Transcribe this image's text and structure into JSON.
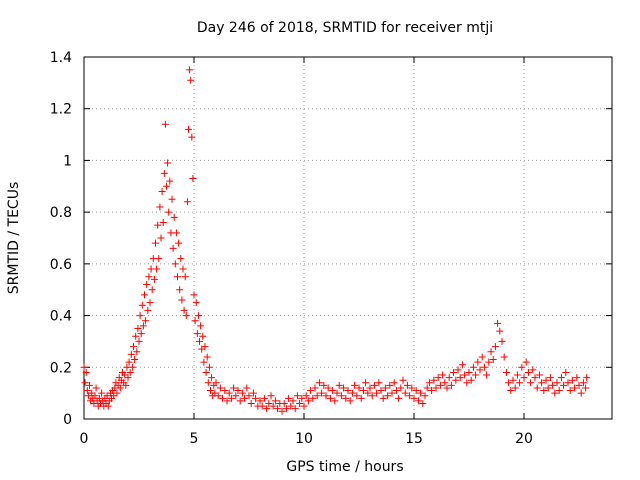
{
  "chart_data": {
    "type": "scatter",
    "title": "Day 246 of 2018, SRMTID for receiver mtji",
    "xlabel": "GPS time / hours",
    "ylabel": "SRMTID / TECUs",
    "xlim": [
      0,
      24
    ],
    "ylim": [
      0,
      1.4
    ],
    "x_ticks": [
      {
        "value": 0,
        "label": "0"
      },
      {
        "value": 5,
        "label": "5"
      },
      {
        "value": 10,
        "label": "10"
      },
      {
        "value": 15,
        "label": "15"
      },
      {
        "value": 20,
        "label": "20"
      }
    ],
    "y_ticks": [
      {
        "value": 0,
        "label": "0"
      },
      {
        "value": 0.2,
        "label": "0.2"
      },
      {
        "value": 0.4,
        "label": "0.4"
      },
      {
        "value": 0.6,
        "label": "0.6"
      },
      {
        "value": 0.8,
        "label": "0.8"
      },
      {
        "value": 1.0,
        "label": "1"
      },
      {
        "value": 1.2,
        "label": "1.2"
      },
      {
        "value": 1.4,
        "label": "1.4"
      }
    ],
    "grid": true,
    "marker": "plus",
    "series": [
      {
        "name": "SRMTID",
        "color": "#ff0000",
        "points": [
          [
            0.0,
            0.2
          ],
          [
            0.05,
            0.14
          ],
          [
            0.1,
            0.18
          ],
          [
            0.15,
            0.11
          ],
          [
            0.2,
            0.09
          ],
          [
            0.25,
            0.13
          ],
          [
            0.3,
            0.07
          ],
          [
            0.35,
            0.1
          ],
          [
            0.4,
            0.08
          ],
          [
            0.45,
            0.06
          ],
          [
            0.5,
            0.09
          ],
          [
            0.55,
            0.12
          ],
          [
            0.6,
            0.07
          ],
          [
            0.65,
            0.05
          ],
          [
            0.7,
            0.08
          ],
          [
            0.75,
            0.06
          ],
          [
            0.8,
            0.1
          ],
          [
            0.85,
            0.07
          ],
          [
            0.9,
            0.05
          ],
          [
            0.95,
            0.08
          ],
          [
            1.0,
            0.06
          ],
          [
            1.05,
            0.09
          ],
          [
            1.1,
            0.05
          ],
          [
            1.15,
            0.07
          ],
          [
            1.2,
            0.1
          ],
          [
            1.25,
            0.08
          ],
          [
            1.3,
            0.11
          ],
          [
            1.35,
            0.09
          ],
          [
            1.4,
            0.12
          ],
          [
            1.45,
            0.14
          ],
          [
            1.5,
            0.1
          ],
          [
            1.55,
            0.13
          ],
          [
            1.6,
            0.16
          ],
          [
            1.65,
            0.12
          ],
          [
            1.7,
            0.15
          ],
          [
            1.75,
            0.18
          ],
          [
            1.8,
            0.14
          ],
          [
            1.85,
            0.17
          ],
          [
            1.9,
            0.13
          ],
          [
            1.95,
            0.2
          ],
          [
            2.0,
            0.16
          ],
          [
            2.05,
            0.22
          ],
          [
            2.1,
            0.18
          ],
          [
            2.15,
            0.25
          ],
          [
            2.2,
            0.2
          ],
          [
            2.25,
            0.28
          ],
          [
            2.3,
            0.23
          ],
          [
            2.35,
            0.32
          ],
          [
            2.4,
            0.26
          ],
          [
            2.45,
            0.35
          ],
          [
            2.5,
            0.3
          ],
          [
            2.55,
            0.4
          ],
          [
            2.6,
            0.33
          ],
          [
            2.65,
            0.44
          ],
          [
            2.7,
            0.36
          ],
          [
            2.75,
            0.48
          ],
          [
            2.8,
            0.38
          ],
          [
            2.85,
            0.52
          ],
          [
            2.9,
            0.42
          ],
          [
            2.95,
            0.55
          ],
          [
            3.0,
            0.45
          ],
          [
            3.05,
            0.58
          ],
          [
            3.1,
            0.5
          ],
          [
            3.15,
            0.62
          ],
          [
            3.2,
            0.54
          ],
          [
            3.25,
            0.68
          ],
          [
            3.3,
            0.58
          ],
          [
            3.35,
            0.75
          ],
          [
            3.4,
            0.62
          ],
          [
            3.45,
            0.82
          ],
          [
            3.5,
            0.7
          ],
          [
            3.55,
            0.88
          ],
          [
            3.6,
            0.76
          ],
          [
            3.65,
            0.95
          ],
          [
            3.7,
            1.14
          ],
          [
            3.75,
            0.9
          ],
          [
            3.8,
            0.99
          ],
          [
            3.85,
            0.8
          ],
          [
            3.9,
            0.92
          ],
          [
            3.95,
            0.72
          ],
          [
            4.0,
            0.85
          ],
          [
            4.05,
            0.66
          ],
          [
            4.1,
            0.78
          ],
          [
            4.15,
            0.6
          ],
          [
            4.2,
            0.72
          ],
          [
            4.25,
            0.55
          ],
          [
            4.3,
            0.68
          ],
          [
            4.35,
            0.5
          ],
          [
            4.4,
            0.62
          ],
          [
            4.45,
            0.46
          ],
          [
            4.5,
            0.58
          ],
          [
            4.55,
            0.42
          ],
          [
            4.6,
            0.55
          ],
          [
            4.65,
            0.4
          ],
          [
            4.7,
            0.84
          ],
          [
            4.75,
            1.12
          ],
          [
            4.8,
            1.35
          ],
          [
            4.85,
            1.31
          ],
          [
            4.9,
            1.09
          ],
          [
            4.95,
            0.93
          ],
          [
            5.0,
            0.48
          ],
          [
            5.05,
            0.38
          ],
          [
            5.1,
            0.45
          ],
          [
            5.15,
            0.33
          ],
          [
            5.2,
            0.4
          ],
          [
            5.25,
            0.3
          ],
          [
            5.3,
            0.36
          ],
          [
            5.35,
            0.27
          ],
          [
            5.4,
            0.32
          ],
          [
            5.45,
            0.22
          ],
          [
            5.5,
            0.28
          ],
          [
            5.55,
            0.18
          ],
          [
            5.6,
            0.24
          ],
          [
            5.65,
            0.14
          ],
          [
            5.7,
            0.2
          ],
          [
            5.75,
            0.11
          ],
          [
            5.8,
            0.16
          ],
          [
            5.85,
            0.09
          ],
          [
            5.9,
            0.13
          ],
          [
            5.95,
            0.1
          ],
          [
            6.0,
            0.14
          ],
          [
            6.1,
            0.09
          ],
          [
            6.2,
            0.12
          ],
          [
            6.3,
            0.08
          ],
          [
            6.4,
            0.11
          ],
          [
            6.5,
            0.07
          ],
          [
            6.6,
            0.1
          ],
          [
            6.7,
            0.08
          ],
          [
            6.8,
            0.12
          ],
          [
            6.9,
            0.09
          ],
          [
            7.0,
            0.11
          ],
          [
            7.1,
            0.07
          ],
          [
            7.2,
            0.1
          ],
          [
            7.3,
            0.08
          ],
          [
            7.4,
            0.12
          ],
          [
            7.5,
            0.09
          ],
          [
            7.6,
            0.06
          ],
          [
            7.7,
            0.1
          ],
          [
            7.8,
            0.08
          ],
          [
            7.9,
            0.05
          ],
          [
            8.0,
            0.07
          ],
          [
            8.1,
            0.05
          ],
          [
            8.2,
            0.08
          ],
          [
            8.3,
            0.04
          ],
          [
            8.4,
            0.06
          ],
          [
            8.5,
            0.09
          ],
          [
            8.6,
            0.05
          ],
          [
            8.7,
            0.07
          ],
          [
            8.8,
            0.04
          ],
          [
            8.9,
            0.06
          ],
          [
            9.0,
            0.03
          ],
          [
            9.1,
            0.06
          ],
          [
            9.2,
            0.04
          ],
          [
            9.3,
            0.08
          ],
          [
            9.4,
            0.05
          ],
          [
            9.5,
            0.07
          ],
          [
            9.6,
            0.04
          ],
          [
            9.7,
            0.09
          ],
          [
            9.8,
            0.06
          ],
          [
            9.9,
            0.08
          ],
          [
            10.0,
            0.05
          ],
          [
            10.1,
            0.09
          ],
          [
            10.2,
            0.07
          ],
          [
            10.3,
            0.11
          ],
          [
            10.4,
            0.08
          ],
          [
            10.5,
            0.12
          ],
          [
            10.6,
            0.09
          ],
          [
            10.7,
            0.14
          ],
          [
            10.8,
            0.1
          ],
          [
            10.9,
            0.13
          ],
          [
            11.0,
            0.09
          ],
          [
            11.1,
            0.12
          ],
          [
            11.2,
            0.08
          ],
          [
            11.3,
            0.11
          ],
          [
            11.4,
            0.07
          ],
          [
            11.5,
            0.1
          ],
          [
            11.6,
            0.13
          ],
          [
            11.7,
            0.09
          ],
          [
            11.8,
            0.12
          ],
          [
            11.9,
            0.08
          ],
          [
            12.0,
            0.11
          ],
          [
            12.1,
            0.07
          ],
          [
            12.2,
            0.1
          ],
          [
            12.3,
            0.13
          ],
          [
            12.4,
            0.09
          ],
          [
            12.5,
            0.12
          ],
          [
            12.6,
            0.08
          ],
          [
            12.7,
            0.11
          ],
          [
            12.8,
            0.14
          ],
          [
            12.9,
            0.1
          ],
          [
            13.0,
            0.12
          ],
          [
            13.1,
            0.09
          ],
          [
            13.2,
            0.13
          ],
          [
            13.3,
            0.1
          ],
          [
            13.4,
            0.14
          ],
          [
            13.5,
            0.11
          ],
          [
            13.6,
            0.08
          ],
          [
            13.7,
            0.12
          ],
          [
            13.8,
            0.09
          ],
          [
            13.9,
            0.13
          ],
          [
            14.0,
            0.1
          ],
          [
            14.1,
            0.14
          ],
          [
            14.2,
            0.11
          ],
          [
            14.3,
            0.08
          ],
          [
            14.4,
            0.12
          ],
          [
            14.5,
            0.15
          ],
          [
            14.6,
            0.1
          ],
          [
            14.7,
            0.13
          ],
          [
            14.8,
            0.09
          ],
          [
            14.9,
            0.12
          ],
          [
            15.0,
            0.08
          ],
          [
            15.1,
            0.11
          ],
          [
            15.2,
            0.07
          ],
          [
            15.3,
            0.1
          ],
          [
            15.4,
            0.06
          ],
          [
            15.5,
            0.09
          ],
          [
            15.6,
            0.12
          ],
          [
            15.7,
            0.14
          ],
          [
            15.8,
            0.11
          ],
          [
            15.9,
            0.15
          ],
          [
            16.0,
            0.12
          ],
          [
            16.1,
            0.16
          ],
          [
            16.2,
            0.13
          ],
          [
            16.3,
            0.17
          ],
          [
            16.4,
            0.14
          ],
          [
            16.5,
            0.12
          ],
          [
            16.6,
            0.16
          ],
          [
            16.7,
            0.13
          ],
          [
            16.8,
            0.18
          ],
          [
            16.9,
            0.15
          ],
          [
            17.0,
            0.19
          ],
          [
            17.1,
            0.16
          ],
          [
            17.2,
            0.21
          ],
          [
            17.3,
            0.17
          ],
          [
            17.4,
            0.14
          ],
          [
            17.5,
            0.18
          ],
          [
            17.6,
            0.15
          ],
          [
            17.7,
            0.2
          ],
          [
            17.8,
            0.17
          ],
          [
            17.9,
            0.22
          ],
          [
            18.0,
            0.19
          ],
          [
            18.1,
            0.24
          ],
          [
            18.2,
            0.2
          ],
          [
            18.3,
            0.17
          ],
          [
            18.4,
            0.22
          ],
          [
            18.5,
            0.26
          ],
          [
            18.6,
            0.23
          ],
          [
            18.7,
            0.28
          ],
          [
            18.8,
            0.37
          ],
          [
            18.9,
            0.34
          ],
          [
            19.0,
            0.3
          ],
          [
            19.1,
            0.24
          ],
          [
            19.2,
            0.18
          ],
          [
            19.3,
            0.14
          ],
          [
            19.4,
            0.11
          ],
          [
            19.5,
            0.15
          ],
          [
            19.6,
            0.12
          ],
          [
            19.7,
            0.17
          ],
          [
            19.8,
            0.14
          ],
          [
            19.9,
            0.2
          ],
          [
            20.0,
            0.16
          ],
          [
            20.1,
            0.22
          ],
          [
            20.2,
            0.18
          ],
          [
            20.3,
            0.14
          ],
          [
            20.4,
            0.19
          ],
          [
            20.5,
            0.16
          ],
          [
            20.6,
            0.12
          ],
          [
            20.7,
            0.17
          ],
          [
            20.8,
            0.14
          ],
          [
            20.9,
            0.11
          ],
          [
            21.0,
            0.15
          ],
          [
            21.1,
            0.12
          ],
          [
            21.2,
            0.16
          ],
          [
            21.3,
            0.13
          ],
          [
            21.4,
            0.1
          ],
          [
            21.5,
            0.14
          ],
          [
            21.6,
            0.11
          ],
          [
            21.7,
            0.16
          ],
          [
            21.8,
            0.13
          ],
          [
            21.9,
            0.18
          ],
          [
            22.0,
            0.14
          ],
          [
            22.1,
            0.11
          ],
          [
            22.2,
            0.15
          ],
          [
            22.3,
            0.12
          ],
          [
            22.4,
            0.16
          ],
          [
            22.5,
            0.13
          ],
          [
            22.6,
            0.1
          ],
          [
            22.7,
            0.14
          ],
          [
            22.8,
            0.12
          ],
          [
            22.85,
            0.16
          ]
        ]
      }
    ]
  }
}
